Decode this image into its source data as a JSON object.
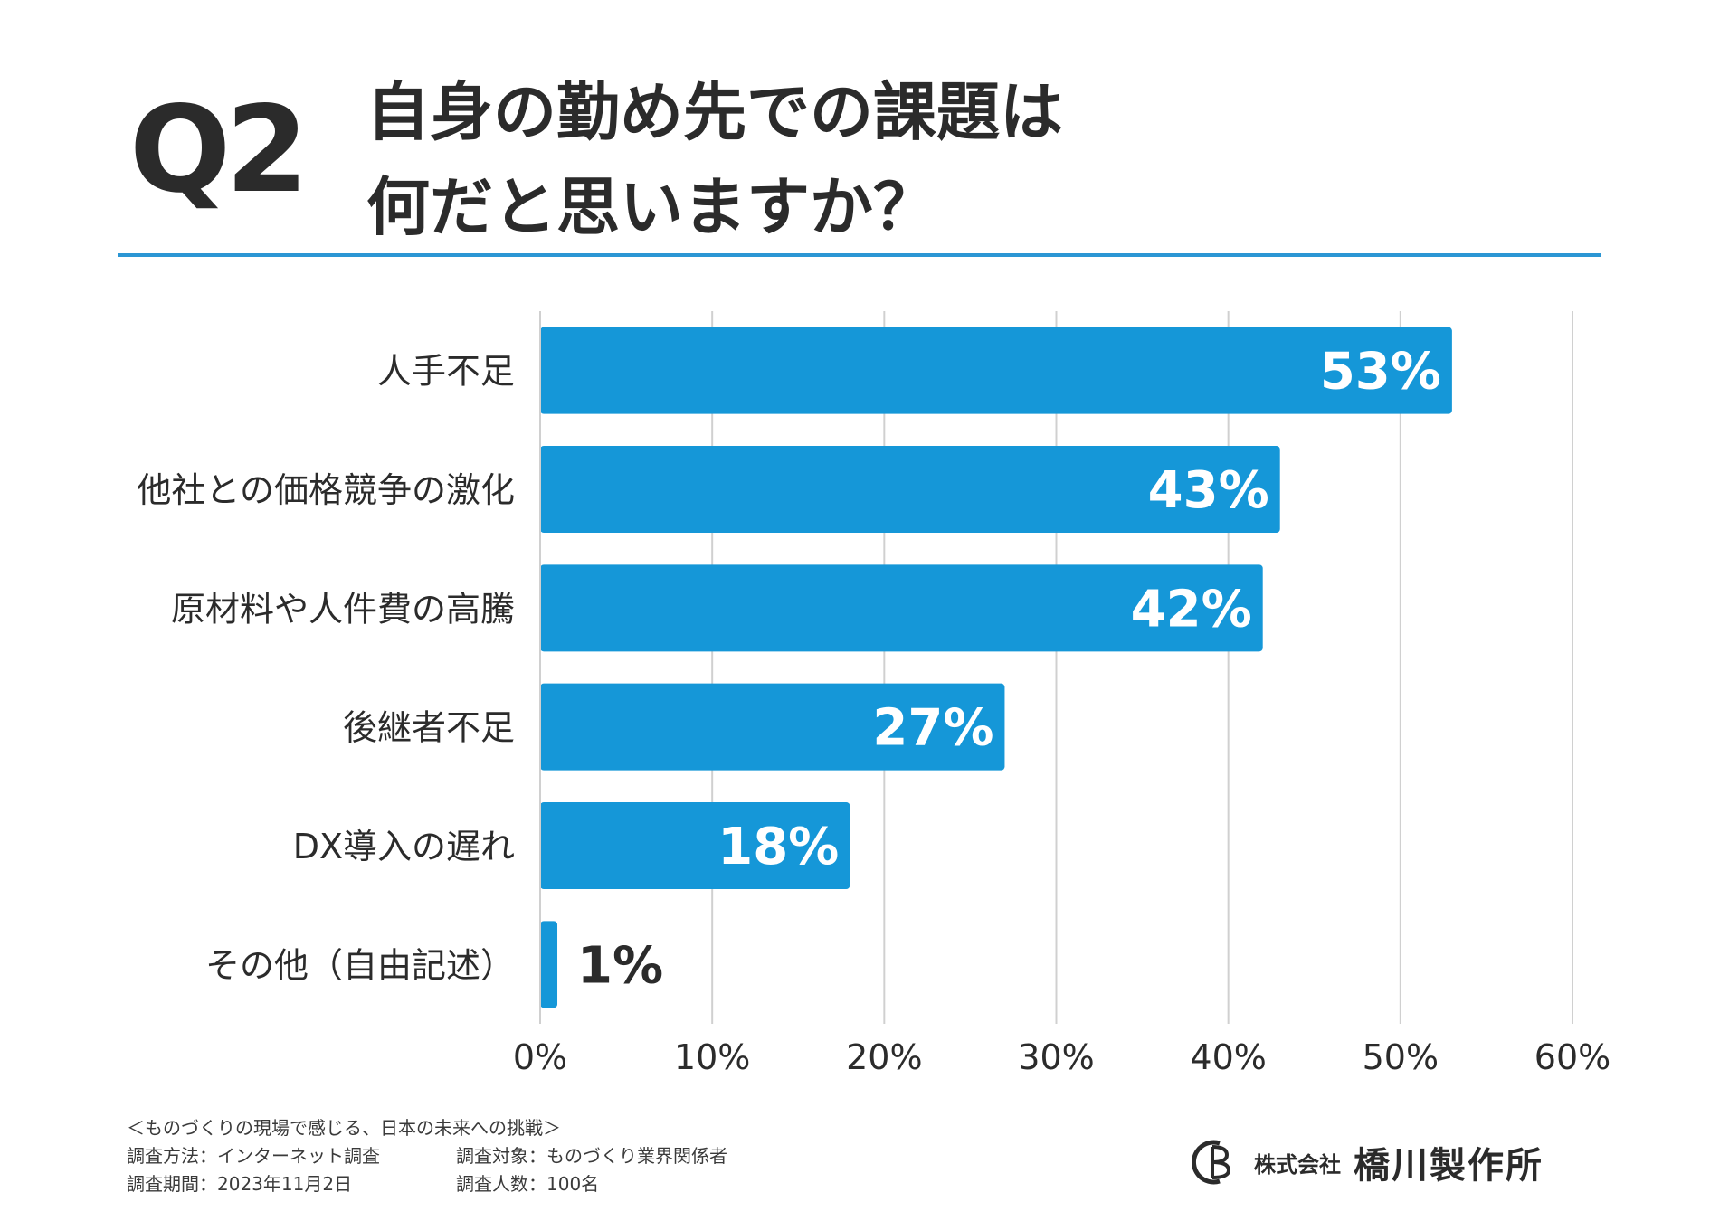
{
  "header": {
    "qnum": "Q2",
    "title_line1": "自身の勤め先での課題は",
    "title_line2": "何だと思いますか？"
  },
  "colors": {
    "bar": "#1597d8",
    "rule": "#2b96d4",
    "grid": "#d0d0d0",
    "text": "#2b2b2b"
  },
  "chart_data": {
    "type": "bar",
    "orientation": "horizontal",
    "categories": [
      "人手不足",
      "他社との価格競争の激化",
      "原材料や人件費の高騰",
      "後継者不足",
      "DX導入の遅れ",
      "その他（自由記述）"
    ],
    "values": [
      53,
      43,
      42,
      27,
      18,
      1
    ],
    "value_labels": [
      "53%",
      "43%",
      "42%",
      "27%",
      "18%",
      "1%"
    ],
    "xlim": [
      0,
      60
    ],
    "xticks": [
      0,
      10,
      20,
      30,
      40,
      50,
      60
    ],
    "xtick_labels": [
      "0%",
      "10%",
      "20%",
      "30%",
      "40%",
      "50%",
      "60%"
    ],
    "title": "",
    "xlabel": "",
    "ylabel": "",
    "grid": true
  },
  "footer": {
    "survey_name": "＜ものづくりの現場で感じる、日本の未来への挑戦＞",
    "method": "調査方法：インターネット調査",
    "target": "調査対象：ものづくり業界関係者",
    "period": "調査期間：2023年11月2日",
    "count": "調査人数：100名"
  },
  "logo": {
    "label": "株式会社",
    "name": "橋川製作所"
  }
}
